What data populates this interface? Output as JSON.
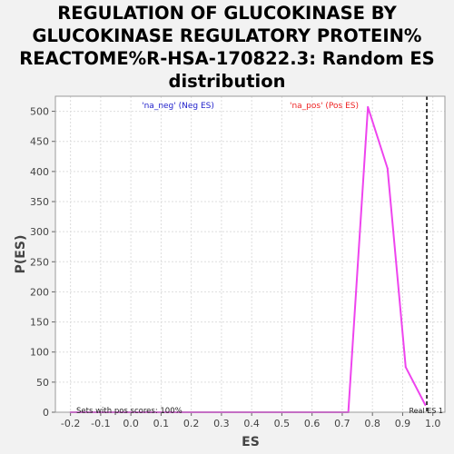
{
  "chart_data": {
    "type": "line",
    "title_lines": [
      "REGULATION OF GLUCOKINASE BY",
      "GLUCOKINASE REGULATORY PROTEIN%",
      "REACTOME%R-HSA-170822.3: Random ES",
      "distribution"
    ],
    "xlabel": "ES",
    "ylabel": "P(ES)",
    "xlim": [
      -0.25,
      1.04
    ],
    "ylim": [
      0,
      525
    ],
    "x_ticks": [
      "-0.2",
      "-0.1",
      "0.0",
      "0.1",
      "0.2",
      "0.3",
      "0.4",
      "0.5",
      "0.6",
      "0.7",
      "0.8",
      "0.9",
      "1.0"
    ],
    "y_ticks": [
      "0",
      "50",
      "100",
      "150",
      "200",
      "250",
      "300",
      "350",
      "400",
      "450",
      "500"
    ],
    "grid": true,
    "series": [
      {
        "color": "#ee44ee",
        "x": [
          -0.2,
          0.72,
          0.785,
          0.85,
          0.91,
          0.975
        ],
        "y": [
          0,
          0,
          507,
          405,
          75,
          12
        ]
      }
    ],
    "legend_labels": [
      {
        "text": "'na_neg' (Neg ES)",
        "color": "#2222cc"
      },
      {
        "text": "'na_pos' (Pos ES)",
        "color": "#ee2222"
      }
    ],
    "annotations": {
      "sets_text": "Sets with pos scores: 100%",
      "real_es_label": "Real ES 1",
      "real_es": 0.98
    }
  }
}
